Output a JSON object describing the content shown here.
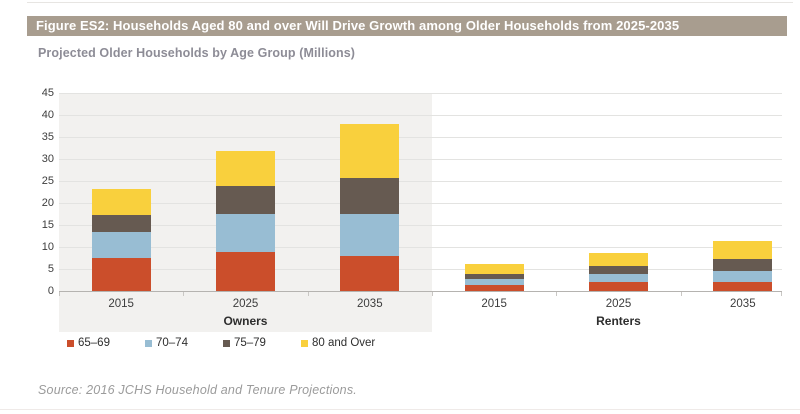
{
  "figure": {
    "title": "Figure ES2: Households Aged 80 and over Will Drive Growth among Older Households from 2025-2035",
    "subtitle": "Projected Older Households by Age Group (Millions)",
    "source": "Source: 2016 JCHS Household and Tenure Projections."
  },
  "chart_data": {
    "type": "bar",
    "stacked": true,
    "title": "Projected Older Households by Age Group (Millions)",
    "unit": "millions of households",
    "ylim": [
      0,
      45
    ],
    "yticks": [
      0,
      5,
      10,
      15,
      20,
      25,
      30,
      35,
      40,
      45
    ],
    "grid": true,
    "legend_position": "bottom",
    "groups": [
      {
        "label": "Owners",
        "categories": [
          "2015",
          "2025",
          "2035"
        ],
        "series": [
          {
            "name": "65–69",
            "color": "#cb4e2b",
            "values": [
              7.7,
              9.0,
              8.2
            ]
          },
          {
            "name": "70–74",
            "color": "#98bdd3",
            "values": [
              5.9,
              8.8,
              9.6
            ]
          },
          {
            "name": "75–79",
            "color": "#665a51",
            "values": [
              3.8,
              6.4,
              8.0
            ]
          },
          {
            "name": "80 and Over",
            "color": "#f9d03d",
            "values": [
              6.1,
              7.9,
              12.3
            ]
          }
        ]
      },
      {
        "label": "Renters",
        "categories": [
          "2015",
          "2025",
          "2035"
        ],
        "series": [
          {
            "name": "65–69",
            "color": "#cb4e2b",
            "values": [
              1.7,
              2.3,
              2.3
            ]
          },
          {
            "name": "70–74",
            "color": "#98bdd3",
            "values": [
              1.3,
              1.9,
              2.5
            ]
          },
          {
            "name": "75–79",
            "color": "#665a51",
            "values": [
              1.0,
              1.7,
              2.6
            ]
          },
          {
            "name": "80 and Over",
            "color": "#f9d03d",
            "values": [
              2.3,
              3.0,
              4.2
            ]
          }
        ]
      }
    ]
  },
  "theme": {
    "title_bar_bg": "#a89d8f",
    "title_text": "#ffffff",
    "subtitle_color": "#8d8c96",
    "owners_panel_bg": "#f2f1ef",
    "grid_color": "#e3e3e1",
    "axis_line_color": "#b5b3b0",
    "axis_text": "#3d3d3d",
    "source_color": "#9b9b9b"
  }
}
